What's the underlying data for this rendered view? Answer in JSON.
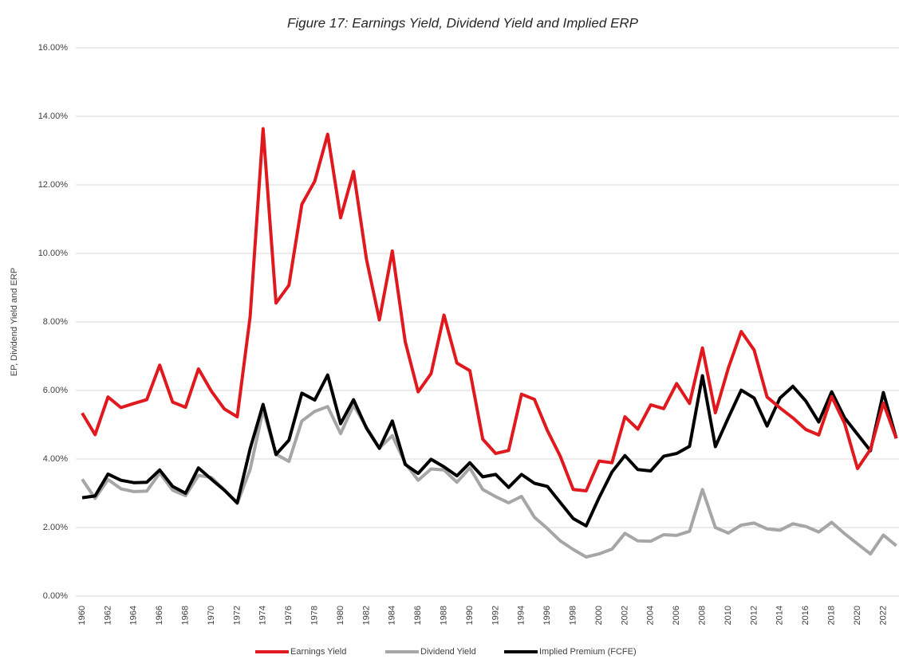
{
  "chart_data": {
    "type": "line",
    "title": "Figure 17: Earnings Yield, Dividend Yield and Implied ERP",
    "y_label": "EP, Dividend Yield and ERP",
    "categories": [
      "1960",
      null,
      "1962",
      null,
      "1964",
      null,
      "1966",
      null,
      "1968",
      null,
      "1970",
      null,
      "1972",
      null,
      "1974",
      null,
      "1976",
      null,
      "1978",
      null,
      "1980",
      null,
      "1982",
      null,
      "1984",
      null,
      "1986",
      null,
      "1988",
      null,
      "1990",
      null,
      "1992",
      null,
      "1994",
      null,
      "1996",
      null,
      "1998",
      null,
      "2000",
      null,
      "2002",
      null,
      "2004",
      null,
      "2006",
      null,
      "2008",
      null,
      "2010",
      null,
      "2012",
      null,
      "2014",
      null,
      "2016",
      null,
      "2018",
      null,
      "2020",
      null,
      "2022",
      null
    ],
    "series": [
      {
        "name": "Earnings Yield",
        "color": "#e0191e",
        "values": [
          5.34,
          4.71,
          5.81,
          5.5,
          5.62,
          5.73,
          6.74,
          5.66,
          5.51,
          6.63,
          5.98,
          5.46,
          5.23,
          8.16,
          13.64,
          8.55,
          9.07,
          11.43,
          12.11,
          13.48,
          11.04,
          12.39,
          9.83,
          8.06,
          10.07,
          7.42,
          5.96,
          6.49,
          8.2,
          6.8,
          6.58,
          4.58,
          4.16,
          4.25,
          5.89,
          5.74,
          4.83,
          4.08,
          3.11,
          3.07,
          3.94,
          3.89,
          5.23,
          4.87,
          5.58,
          5.47,
          6.2,
          5.62,
          7.24,
          5.35,
          6.65,
          7.72,
          7.18,
          5.81,
          5.49,
          5.2,
          4.86,
          4.7,
          5.82,
          5.04,
          3.72,
          4.28,
          5.63,
          4.6
        ]
      },
      {
        "name": "Dividend Yield",
        "color": "#a6a6a6",
        "values": [
          3.41,
          2.85,
          3.4,
          3.13,
          3.05,
          3.06,
          3.59,
          3.09,
          2.93,
          3.52,
          3.46,
          3.1,
          2.7,
          3.7,
          5.43,
          4.14,
          3.93,
          5.11,
          5.39,
          5.53,
          4.74,
          5.57,
          4.93,
          4.32,
          4.68,
          3.88,
          3.38,
          3.71,
          3.68,
          3.32,
          3.74,
          3.11,
          2.9,
          2.72,
          2.91,
          2.3,
          1.97,
          1.61,
          1.36,
          1.14,
          1.23,
          1.37,
          1.83,
          1.61,
          1.6,
          1.79,
          1.77,
          1.89,
          3.11,
          2.0,
          1.84,
          2.07,
          2.13,
          1.96,
          1.92,
          2.11,
          2.03,
          1.87,
          2.15,
          1.82,
          1.52,
          1.23,
          1.78,
          1.47
        ]
      },
      {
        "name": "Implied Premium (FCFE)",
        "color": "#000000",
        "values": [
          2.87,
          2.92,
          3.56,
          3.38,
          3.31,
          3.32,
          3.68,
          3.2,
          3.0,
          3.74,
          3.41,
          3.09,
          2.72,
          4.3,
          5.59,
          4.13,
          4.55,
          5.92,
          5.72,
          6.45,
          5.03,
          5.73,
          4.9,
          4.31,
          5.11,
          3.84,
          3.58,
          3.99,
          3.77,
          3.51,
          3.89,
          3.48,
          3.55,
          3.17,
          3.55,
          3.29,
          3.2,
          2.73,
          2.26,
          2.05,
          2.87,
          3.62,
          4.1,
          3.69,
          3.65,
          4.08,
          4.16,
          4.37,
          6.43,
          4.36,
          5.2,
          6.01,
          5.78,
          4.96,
          5.78,
          6.12,
          5.69,
          5.08,
          5.96,
          5.2,
          4.72,
          4.24,
          5.94,
          4.6
        ]
      }
    ],
    "ylim": [
      0,
      16
    ],
    "yticks": [
      {
        "value": 0,
        "label": "0.00%"
      },
      {
        "value": 2,
        "label": "2.00%"
      },
      {
        "value": 4,
        "label": "4.00%"
      },
      {
        "value": 6,
        "label": "6.00%"
      },
      {
        "value": 8,
        "label": "8.00%"
      },
      {
        "value": 10,
        "label": "10.00%"
      },
      {
        "value": 12,
        "label": "12.00%"
      },
      {
        "value": 14,
        "label": "14.00%"
      },
      {
        "value": 16,
        "label": "16.00%"
      }
    ],
    "grid": true,
    "legend": "bottom"
  }
}
